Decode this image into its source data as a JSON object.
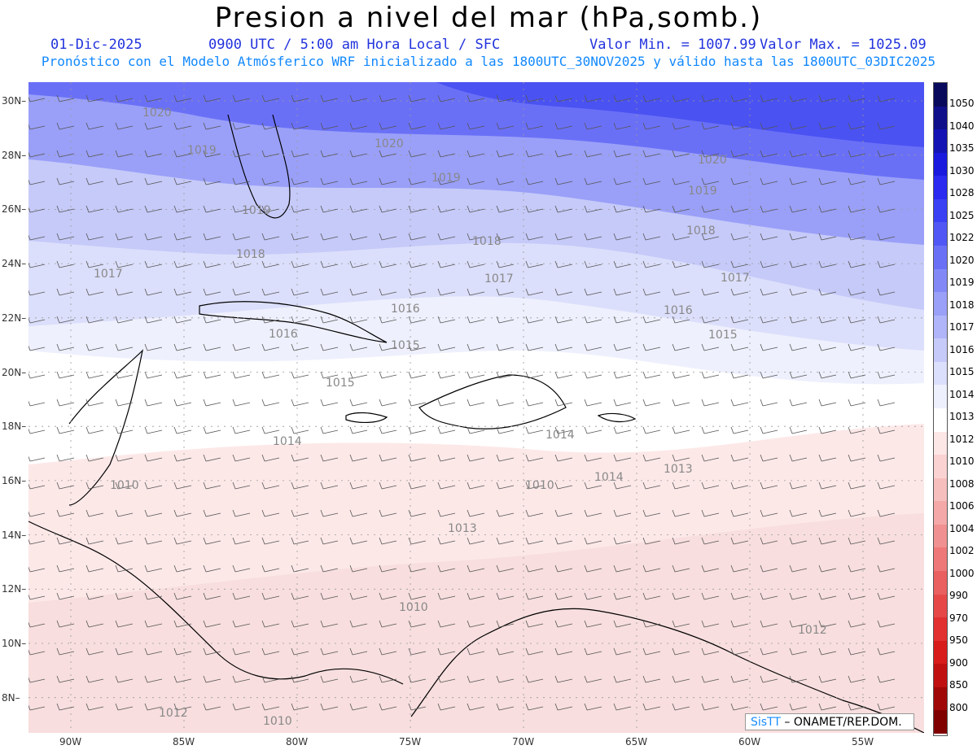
{
  "title": "Presion a nivel del mar (hPa,somb.)",
  "date": "01-Dic-2025",
  "time_info": "0900 UTC / 5:00 am Hora Local / SFC",
  "min_label": "Valor Min. = 1007.99",
  "max_label": "Valor Max. = 1025.09",
  "forecast_note": "Pronóstico con el Modelo Atmósferico WRF inicializado a las 1800UTC_30NOV2025 y válido hasta las  1800UTC_03DIC2025",
  "logo_brand": "SisTT",
  "logo_org": " – ONAMET/REP.DOM.",
  "lat_labels": [
    "30N",
    "28N",
    "26N",
    "24N",
    "22N",
    "20N",
    "18N",
    "16N",
    "14N",
    "12N",
    "10N",
    "8N"
  ],
  "lon_labels": [
    "90W",
    "85W",
    "80W",
    "75W",
    "70W",
    "65W",
    "60W",
    "55W"
  ],
  "colorbar": {
    "levels": [
      "1050",
      "1040",
      "1035",
      "1030",
      "1028",
      "1025",
      "1022",
      "1020",
      "1019",
      "1018",
      "1017",
      "1016",
      "1015",
      "1014",
      "1013",
      "1012",
      "1010",
      "1008",
      "1006",
      "1004",
      "1002",
      "1000",
      "990",
      "970",
      "950",
      "900",
      "850",
      "800"
    ],
    "colors": [
      "#0a0a5c",
      "#10108a",
      "#1414b4",
      "#1a1ade",
      "#2a2af0",
      "#3a40f4",
      "#5057f5",
      "#6a70f6",
      "#8289f7",
      "#9aa0f8",
      "#b0b5f9",
      "#c6caf9",
      "#dcdffb",
      "#eef0fd",
      "#ffffff",
      "#fde6e6",
      "#fad2d2",
      "#f7bebe",
      "#f4a8a8",
      "#f19090",
      "#ee7878",
      "#ea6060",
      "#e64848",
      "#e23030",
      "#d81c1c",
      "#c01010",
      "#a00808",
      "#800000"
    ]
  },
  "contour_labels": [
    "1020",
    "1020",
    "1020",
    "1019",
    "1019",
    "1019",
    "1019",
    "1018",
    "1018",
    "1018",
    "1017",
    "1017",
    "1017",
    "1016",
    "1016",
    "1016",
    "1015",
    "1015",
    "1015",
    "1014",
    "1014",
    "1014",
    "1013",
    "1013",
    "1012",
    "1012",
    "1010",
    "1010",
    "1010",
    "1010"
  ]
}
